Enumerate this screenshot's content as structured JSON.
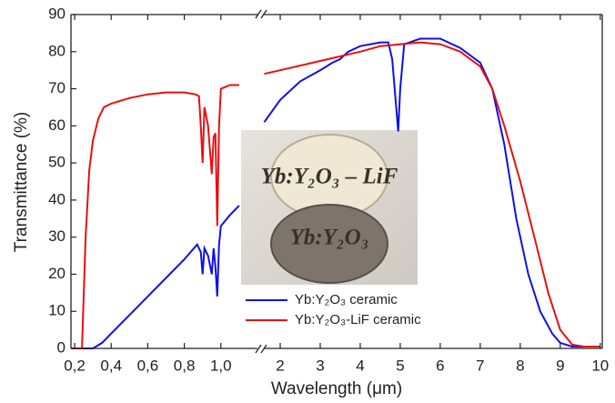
{
  "chart_data": [
    {
      "type": "line",
      "y_label": "Transmittance (%)",
      "xlim": [
        0.18,
        1.2
      ],
      "ylim": [
        0,
        90
      ],
      "xticks": [
        {
          "value": 0.2,
          "label": "0,2"
        },
        {
          "value": 0.4,
          "label": "0,4"
        },
        {
          "value": 0.6,
          "label": "0,6"
        },
        {
          "value": 0.8,
          "label": "0,8"
        },
        {
          "value": 1.0,
          "label": "1,0"
        }
      ],
      "yticks": [
        0,
        10,
        20,
        30,
        40,
        50,
        60,
        70,
        80,
        90
      ],
      "series": [
        {
          "color": "#1010e8",
          "x": [
            0.18,
            0.3,
            0.35,
            0.4,
            0.5,
            0.6,
            0.7,
            0.8,
            0.87,
            0.89,
            0.9,
            0.91,
            0.93,
            0.95,
            0.96,
            0.97,
            0.98,
            0.99,
            1.0,
            1.05,
            1.1
          ],
          "values": [
            0,
            0,
            1.5,
            4,
            9,
            14,
            19,
            24,
            28,
            26,
            20,
            27,
            25,
            20,
            27,
            22,
            14,
            28,
            33,
            36,
            38.5
          ]
        },
        {
          "color": "#e81010",
          "x": [
            0.18,
            0.24,
            0.26,
            0.28,
            0.3,
            0.33,
            0.36,
            0.4,
            0.5,
            0.6,
            0.7,
            0.8,
            0.86,
            0.88,
            0.89,
            0.9,
            0.91,
            0.93,
            0.95,
            0.96,
            0.97,
            0.98,
            0.99,
            1.0,
            1.05,
            1.1
          ],
          "values": [
            0,
            0,
            30,
            48,
            56,
            62,
            65,
            66,
            67.5,
            68.5,
            69,
            69,
            68.5,
            68,
            60,
            50,
            65,
            60,
            47,
            57,
            58,
            33,
            60,
            70,
            71,
            71
          ]
        }
      ]
    },
    {
      "type": "line",
      "x_label": "Wavelength (μm)",
      "xlim": [
        1.59,
        10.05
      ],
      "ylim": [
        0,
        90
      ],
      "xticks": [
        2,
        3,
        4,
        5,
        6,
        7,
        8,
        9,
        10
      ],
      "legend": "lower-left",
      "annotations": [
        "Yb:Y₂O₃ – LiF",
        "Yb:Y₂O₃"
      ],
      "series": [
        {
          "name": "Yb:Y₂O₃ ceramic",
          "color": "#1010e8",
          "x": [
            1.6,
            2,
            2.5,
            3,
            3.3,
            3.5,
            3.7,
            4,
            4.5,
            4.7,
            4.8,
            4.9,
            4.95,
            5.0,
            5.1,
            5.5,
            6,
            6.5,
            7,
            7.3,
            7.6,
            7.9,
            8.2,
            8.5,
            8.8,
            9.0,
            9.3,
            10
          ],
          "values": [
            61,
            67,
            72,
            75,
            77,
            78,
            80,
            81.5,
            82.5,
            82.5,
            78,
            65,
            58.5,
            70,
            82,
            83.5,
            83.5,
            81,
            77,
            70,
            55,
            35,
            20,
            10,
            4,
            1.5,
            0.5,
            0.5
          ]
        },
        {
          "name": "Yb:Y₂O₃-LiF ceramic",
          "color": "#e81010",
          "x": [
            1.6,
            2,
            3,
            4,
            4.5,
            5,
            5.5,
            6,
            6.5,
            7,
            7.3,
            7.6,
            8,
            8.4,
            8.7,
            9.0,
            9.3,
            9.6,
            10
          ],
          "values": [
            74,
            75,
            77.5,
            80,
            81.5,
            82,
            82.5,
            82,
            80,
            76,
            70,
            60,
            45,
            28,
            15,
            5,
            1,
            0.5,
            0.5
          ]
        }
      ]
    }
  ]
}
